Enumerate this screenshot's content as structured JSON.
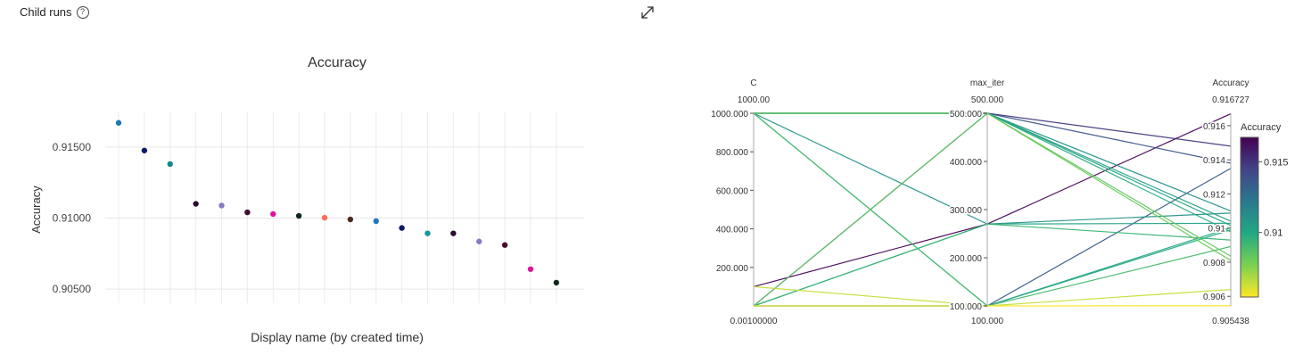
{
  "header": {
    "title": "Child runs",
    "help_icon": "?",
    "expand_icon": "expand-icon"
  },
  "chart_data": [
    {
      "type": "scatter",
      "title": "Accuracy",
      "xlabel": "Display name (by created time)",
      "ylabel": "Accuracy",
      "ylim": [
        0.904,
        0.9175
      ],
      "yticks": [
        "0.90500",
        "0.91000",
        "0.91500"
      ],
      "grid": true,
      "points": [
        {
          "y": 0.9167,
          "color": "#1f77b4"
        },
        {
          "y": 0.91475,
          "color": "#0d1b63"
        },
        {
          "y": 0.9138,
          "color": "#13888b"
        },
        {
          "y": 0.911,
          "color": "#2a0d2e"
        },
        {
          "y": 0.91088,
          "color": "#8a79c4"
        },
        {
          "y": 0.9104,
          "color": "#3b0d2f"
        },
        {
          "y": 0.91028,
          "color": "#e0149a"
        },
        {
          "y": 0.91015,
          "color": "#0e2a1a"
        },
        {
          "y": 0.91002,
          "color": "#ff6b5e"
        },
        {
          "y": 0.9099,
          "color": "#4a2a1a"
        },
        {
          "y": 0.90978,
          "color": "#1f77c4"
        },
        {
          "y": 0.9093,
          "color": "#0d1b63"
        },
        {
          "y": 0.90892,
          "color": "#13999b"
        },
        {
          "y": 0.90892,
          "color": "#2a0d2e"
        },
        {
          "y": 0.90835,
          "color": "#8a79c4"
        },
        {
          "y": 0.9081,
          "color": "#4a0d2a"
        },
        {
          "y": 0.9064,
          "color": "#e0149a"
        },
        {
          "y": 0.90545,
          "color": "#0e2a1a"
        }
      ]
    },
    {
      "type": "parallel_coordinates",
      "dimensions": [
        {
          "label": "C",
          "range": [
            0.001,
            1000
          ],
          "top_label": "1000.00",
          "bottom_label": "0.00100000",
          "ticks": [
            200,
            400,
            600,
            800,
            1000
          ],
          "tick_labels": [
            "200.000",
            "400.000",
            "600.000",
            "800.000",
            "1000.000"
          ]
        },
        {
          "label": "max_iter",
          "range": [
            100,
            500
          ],
          "top_label": "500.000",
          "bottom_label": "100.000",
          "ticks": [
            100,
            200,
            300,
            400,
            500
          ],
          "tick_labels": [
            "100.000",
            "200.000",
            "300.000",
            "400.000",
            "500.000"
          ]
        },
        {
          "label": "Accuracy",
          "range": [
            0.905438,
            0.916727
          ],
          "top_label": "0.916727",
          "bottom_label": "0.905438",
          "ticks": [
            0.906,
            0.908,
            0.91,
            0.912,
            0.914,
            0.916
          ],
          "tick_labels": [
            "0.906",
            "0.908",
            "0.91",
            "0.912",
            "0.914",
            "0.916"
          ]
        }
      ],
      "lines": [
        [
          1000,
          500,
          0.9148
        ],
        [
          100,
          270,
          0.9167
        ],
        [
          0.001,
          500,
          0.9138
        ],
        [
          0.001,
          100,
          0.9135
        ],
        [
          1000,
          500,
          0.911
        ],
        [
          1000,
          270,
          0.91088
        ],
        [
          1000,
          500,
          0.9104
        ],
        [
          0.001,
          270,
          0.91028
        ],
        [
          1000,
          500,
          0.91015
        ],
        [
          1000,
          100,
          0.91002
        ],
        [
          0.001,
          100,
          0.9099
        ],
        [
          1000,
          500,
          0.90978
        ],
        [
          0.001,
          270,
          0.9093
        ],
        [
          1000,
          100,
          0.90892
        ],
        [
          0.001,
          500,
          0.90835
        ],
        [
          1000,
          500,
          0.9081
        ],
        [
          100,
          100,
          0.9064
        ],
        [
          0.001,
          100,
          0.90545
        ]
      ],
      "colorbar": {
        "title": "Accuracy",
        "tick_labels": [
          "0.91",
          "0.915"
        ],
        "ticks": [
          0.91,
          0.915
        ],
        "colors": [
          "#fde725",
          "#7ad151",
          "#22a884",
          "#2a788e",
          "#414487",
          "#440154"
        ]
      }
    }
  ]
}
